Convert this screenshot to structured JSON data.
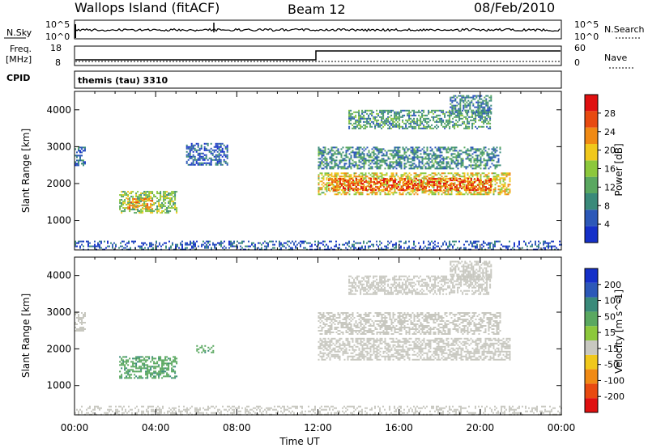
{
  "header": {
    "station": "Wallops Island (fitACF)",
    "beam": "Beam 12",
    "date": "08/Feb/2010"
  },
  "noise_panel": {
    "left_label": "N.Sky",
    "right_label": "N.Search",
    "left_ticks": [
      "10^5",
      "10^0"
    ],
    "right_ticks": [
      "10^5",
      "10^0"
    ]
  },
  "freq_panel": {
    "left_label_line1": "Freq.",
    "left_label_line2": "[MHz]",
    "left_ticks": [
      "18",
      "8"
    ],
    "right_label": "Nave",
    "right_ticks": [
      "60",
      "0"
    ]
  },
  "cpid": {
    "label": "CPID",
    "value": "themis (tau) 3310"
  },
  "colors": {
    "frame": "#000000",
    "power_scale": [
      "#1530c8",
      "#2c58b8",
      "#3a8a7a",
      "#5aa860",
      "#8cc83c",
      "#f0c81c",
      "#f08a14",
      "#e84a10",
      "#e01010"
    ],
    "velocity_scale": [
      "#1530c8",
      "#2c58b8",
      "#3a8a7a",
      "#5aa860",
      "#8cc83c",
      "#c8c8c0",
      "#f0c81c",
      "#f08a14",
      "#e84a10",
      "#e01010"
    ],
    "ground_scatter": "#c8c8c0"
  },
  "chart_data": [
    {
      "type": "heatmap",
      "name": "power",
      "ylabel": "Slant Range [km]",
      "xlabel": "Time UT",
      "ylim": [
        200,
        4500
      ],
      "xlim": [
        0,
        24
      ],
      "yticks": [
        "1000",
        "2000",
        "3000",
        "4000"
      ],
      "xticks": [
        "00:00",
        "04:00",
        "08:00",
        "12:00",
        "16:00",
        "20:00",
        "00:00"
      ],
      "colorbar_label": "Power [dB]",
      "colorbar_ticks": [
        "4",
        "8",
        "12",
        "16",
        "20",
        "24",
        "28"
      ],
      "colorbar_range": [
        0,
        30
      ],
      "regions": [
        {
          "t0": 0.0,
          "t1": 0.5,
          "r0": 2500,
          "r1": 3000,
          "v": 6
        },
        {
          "t0": 2.2,
          "t1": 5.0,
          "r0": 1200,
          "r1": 1800,
          "v": 14
        },
        {
          "t0": 2.6,
          "t1": 3.8,
          "r0": 1300,
          "r1": 1600,
          "v": 22
        },
        {
          "t0": 5.5,
          "t1": 7.5,
          "r0": 2500,
          "r1": 3100,
          "v": 5
        },
        {
          "t0": 12.0,
          "t1": 21.5,
          "r0": 1700,
          "r1": 2300,
          "v": 18
        },
        {
          "t0": 12.5,
          "t1": 20.5,
          "r0": 1800,
          "r1": 2150,
          "v": 25
        },
        {
          "t0": 12.0,
          "t1": 21.0,
          "r0": 2400,
          "r1": 3000,
          "v": 9
        },
        {
          "t0": 13.5,
          "t1": 20.5,
          "r0": 3500,
          "r1": 4000,
          "v": 10
        },
        {
          "t0": 18.5,
          "t1": 20.5,
          "r0": 3900,
          "r1": 4400,
          "v": 8
        },
        {
          "t0": 0.0,
          "t1": 24.0,
          "r0": 200,
          "r1": 450,
          "v": 5
        }
      ]
    },
    {
      "type": "heatmap",
      "name": "velocity",
      "ylabel": "Slant Range [km]",
      "xlabel": "Time UT",
      "ylim": [
        200,
        4500
      ],
      "xlim": [
        0,
        24
      ],
      "yticks": [
        "1000",
        "2000",
        "3000",
        "4000"
      ],
      "xticks": [
        "00:00",
        "04:00",
        "08:00",
        "12:00",
        "16:00",
        "20:00",
        "00:00"
      ],
      "colorbar_label": "Velocity [m s^-1]",
      "colorbar_ticks": [
        "200",
        "100",
        "50",
        "15",
        "-15",
        "-50",
        "-100",
        "-200"
      ],
      "colorbar_range": [
        -250,
        250
      ],
      "regions": [
        {
          "t0": 0.0,
          "t1": 0.5,
          "r0": 2500,
          "r1": 3000,
          "v": 0
        },
        {
          "t0": 2.2,
          "t1": 5.0,
          "r0": 1200,
          "r1": 1800,
          "v": 40
        },
        {
          "t0": 6.0,
          "t1": 6.8,
          "r0": 1900,
          "r1": 2100,
          "v": 40
        },
        {
          "t0": 12.0,
          "t1": 21.5,
          "r0": 1700,
          "r1": 2300,
          "v": 0
        },
        {
          "t0": 12.0,
          "t1": 21.0,
          "r0": 2400,
          "r1": 3000,
          "v": 0
        },
        {
          "t0": 13.5,
          "t1": 20.5,
          "r0": 3500,
          "r1": 4000,
          "v": 0
        },
        {
          "t0": 18.5,
          "t1": 20.5,
          "r0": 3900,
          "r1": 4400,
          "v": 0
        },
        {
          "t0": 0.0,
          "t1": 24.0,
          "r0": 200,
          "r1": 450,
          "v": -20
        }
      ]
    }
  ]
}
